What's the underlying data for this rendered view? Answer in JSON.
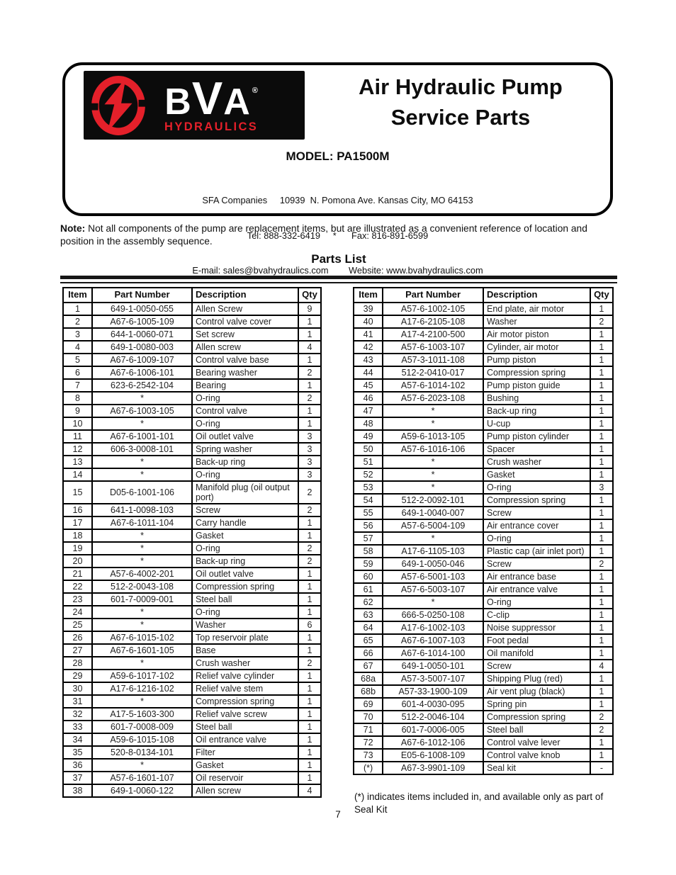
{
  "theme": {
    "brand_red": "#e4202a",
    "logo_black": "#0b0b0b"
  },
  "header": {
    "logo": {
      "letters": [
        "B",
        "V",
        "A"
      ],
      "registered_mark": "®",
      "sub_brand": "HYDRAULICS",
      "emblem_icon": "lightning-bolt-in-ring"
    },
    "title_line1": "Air Hydraulic Pump",
    "title_line2": "Service Parts",
    "model": "MODEL: PA1500M",
    "address_line1": "SFA Companies     10939  N. Pomona Ave. Kansas City, MO 64153",
    "address_line2": "Tel: 888-332-6419     *      Fax: 816-891-6599",
    "address_line3": "E-mail: sales@bvahydraulics.com        Website: www.bvahydraulics.com"
  },
  "note": {
    "label": "Note:",
    "text": " Not all components of the pump are replacement items, but are illustrated as a convenient reference of location and position in the assembly sequence."
  },
  "parts_list_title": "Parts List",
  "tables": [
    {
      "name": "parts-table-left",
      "headers": [
        "Item",
        "Part Number",
        "Description",
        "Qty"
      ],
      "rows": [
        [
          "1",
          "649-1-0050-055",
          "Allen Screw",
          "9"
        ],
        [
          "2",
          "A67-6-1005-109",
          "Control valve cover",
          "1"
        ],
        [
          "3",
          "644-1-0060-071",
          "Set screw",
          "1"
        ],
        [
          "4",
          "649-1-0080-003",
          "Allen screw",
          "4"
        ],
        [
          "5",
          "A67-6-1009-107",
          "Control valve base",
          "1"
        ],
        [
          "6",
          "A67-6-1006-101",
          "Bearing washer",
          "2"
        ],
        [
          "7",
          "623-6-2542-104",
          "Bearing",
          "1"
        ],
        [
          "8",
          "*",
          "O-ring",
          "2"
        ],
        [
          "9",
          "A67-6-1003-105",
          "Control valve",
          "1"
        ],
        [
          "10",
          "*",
          "O-ring",
          "1"
        ],
        [
          "11",
          "A67-6-1001-101",
          "Oil outlet valve",
          "3"
        ],
        [
          "12",
          "606-3-0008-101",
          "Spring washer",
          "3"
        ],
        [
          "13",
          "*",
          "Back-up ring",
          "3"
        ],
        [
          "14",
          "*",
          "O-ring",
          "3"
        ],
        [
          "15",
          "D05-6-1001-106",
          "Manifold plug (oil output port)",
          "2"
        ],
        [
          "16",
          "641-1-0098-103",
          "Screw",
          "2"
        ],
        [
          "17",
          "A67-6-1011-104",
          "Carry handle",
          "1"
        ],
        [
          "18",
          "*",
          "Gasket",
          "1"
        ],
        [
          "19",
          "*",
          "O-ring",
          "2"
        ],
        [
          "20",
          "*",
          "Back-up ring",
          "2"
        ],
        [
          "21",
          "A57-6-4002-201",
          "Oil outlet valve",
          "1"
        ],
        [
          "22",
          "512-2-0043-108",
          "Compression spring",
          "1"
        ],
        [
          "23",
          "601-7-0009-001",
          "Steel ball",
          "1"
        ],
        [
          "24",
          "*",
          "O-ring",
          "1"
        ],
        [
          "25",
          "*",
          "Washer",
          "6"
        ],
        [
          "26",
          "A67-6-1015-102",
          "Top reservoir plate",
          "1"
        ],
        [
          "27",
          "A67-6-1601-105",
          "Base",
          "1"
        ],
        [
          "28",
          "*",
          "Crush washer",
          "2"
        ],
        [
          "29",
          "A59-6-1017-102",
          "Relief valve cylinder",
          "1"
        ],
        [
          "30",
          "A17-6-1216-102",
          "Relief valve stem",
          "1"
        ],
        [
          "31",
          "*",
          "Compression spring",
          "1"
        ],
        [
          "32",
          "A17-5-1603-300",
          "Relief valve screw",
          "1"
        ],
        [
          "33",
          "601-7-0008-009",
          "Steel ball",
          "1"
        ],
        [
          "34",
          "A59-6-1015-108",
          "Oil entrance valve",
          "1"
        ],
        [
          "35",
          "520-8-0134-101",
          "Filter",
          "1"
        ],
        [
          "36",
          "*",
          "Gasket",
          "1"
        ],
        [
          "37",
          "A57-6-1601-107",
          "Oil reservoir",
          "1"
        ],
        [
          "38",
          "649-1-0060-122",
          "Allen screw",
          "4"
        ]
      ]
    },
    {
      "name": "parts-table-right",
      "headers": [
        "Item",
        "Part Number",
        "Description",
        "Qty"
      ],
      "rows": [
        [
          "39",
          "A57-6-1002-105",
          "End plate, air motor",
          "1"
        ],
        [
          "40",
          "A17-6-2105-108",
          "Washer",
          "2"
        ],
        [
          "41",
          "A17-4-2100-500",
          "Air motor piston",
          "1"
        ],
        [
          "42",
          "A57-6-1003-107",
          "Cylinder, air motor",
          "1"
        ],
        [
          "43",
          "A57-3-1011-108",
          "Pump piston",
          "1"
        ],
        [
          "44",
          "512-2-0410-017",
          "Compression spring",
          "1"
        ],
        [
          "45",
          "A57-6-1014-102",
          "Pump piston guide",
          "1"
        ],
        [
          "46",
          "A57-6-2023-108",
          "Bushing",
          "1"
        ],
        [
          "47",
          "*",
          "Back-up ring",
          "1"
        ],
        [
          "48",
          "*",
          "U-cup",
          "1"
        ],
        [
          "49",
          "A59-6-1013-105",
          "Pump piston cylinder",
          "1"
        ],
        [
          "50",
          "A57-6-1016-106",
          "Spacer",
          "1"
        ],
        [
          "51",
          "*",
          "Crush washer",
          "1"
        ],
        [
          "52",
          "*",
          "Gasket",
          "1"
        ],
        [
          "53",
          "*",
          "O-ring",
          "3"
        ],
        [
          "54",
          "512-2-0092-101",
          "Compression spring",
          "1"
        ],
        [
          "55",
          "649-1-0040-007",
          "Screw",
          "1"
        ],
        [
          "56",
          "A57-6-5004-109",
          "Air entrance cover",
          "1"
        ],
        [
          "57",
          "*",
          "O-ring",
          "1"
        ],
        [
          "58",
          "A17-6-1105-103",
          "Plastic cap (air inlet port)",
          "1"
        ],
        [
          "59",
          "649-1-0050-046",
          "Screw",
          "2"
        ],
        [
          "60",
          "A57-6-5001-103",
          "Air entrance base",
          "1"
        ],
        [
          "61",
          "A57-6-5003-107",
          "Air entrance valve",
          "1"
        ],
        [
          "62",
          "*",
          "O-ring",
          "1"
        ],
        [
          "63",
          "666-5-0250-108",
          "C-clip",
          "1"
        ],
        [
          "64",
          "A17-6-1002-103",
          "Noise suppressor",
          "1"
        ],
        [
          "65",
          "A67-6-1007-103",
          "Foot pedal",
          "1"
        ],
        [
          "66",
          "A67-6-1014-100",
          "Oil manifold",
          "1"
        ],
        [
          "67",
          "649-1-0050-101",
          "Screw",
          "4"
        ],
        [
          "68a",
          "A57-3-5007-107",
          "Shipping Plug (red)",
          "1"
        ],
        [
          "68b",
          "A57-33-1900-109",
          "Air vent plug (black)",
          "1"
        ],
        [
          "69",
          "601-4-0030-095",
          "Spring pin",
          "1"
        ],
        [
          "70",
          "512-2-0046-104",
          "Compression spring",
          "2"
        ],
        [
          "71",
          "601-7-0006-005",
          "Steel ball",
          "2"
        ],
        [
          "72",
          "A67-6-1012-106",
          "Control valve lever",
          "1"
        ],
        [
          "73",
          "E05-6-1008-109",
          "Control valve knob",
          "1"
        ],
        [
          "(*)",
          "A67-3-9901-109",
          "Seal kit",
          "-"
        ]
      ]
    }
  ],
  "footnote": "(*) indicates items included in, and available only as part of Seal Kit",
  "page_number": "7"
}
